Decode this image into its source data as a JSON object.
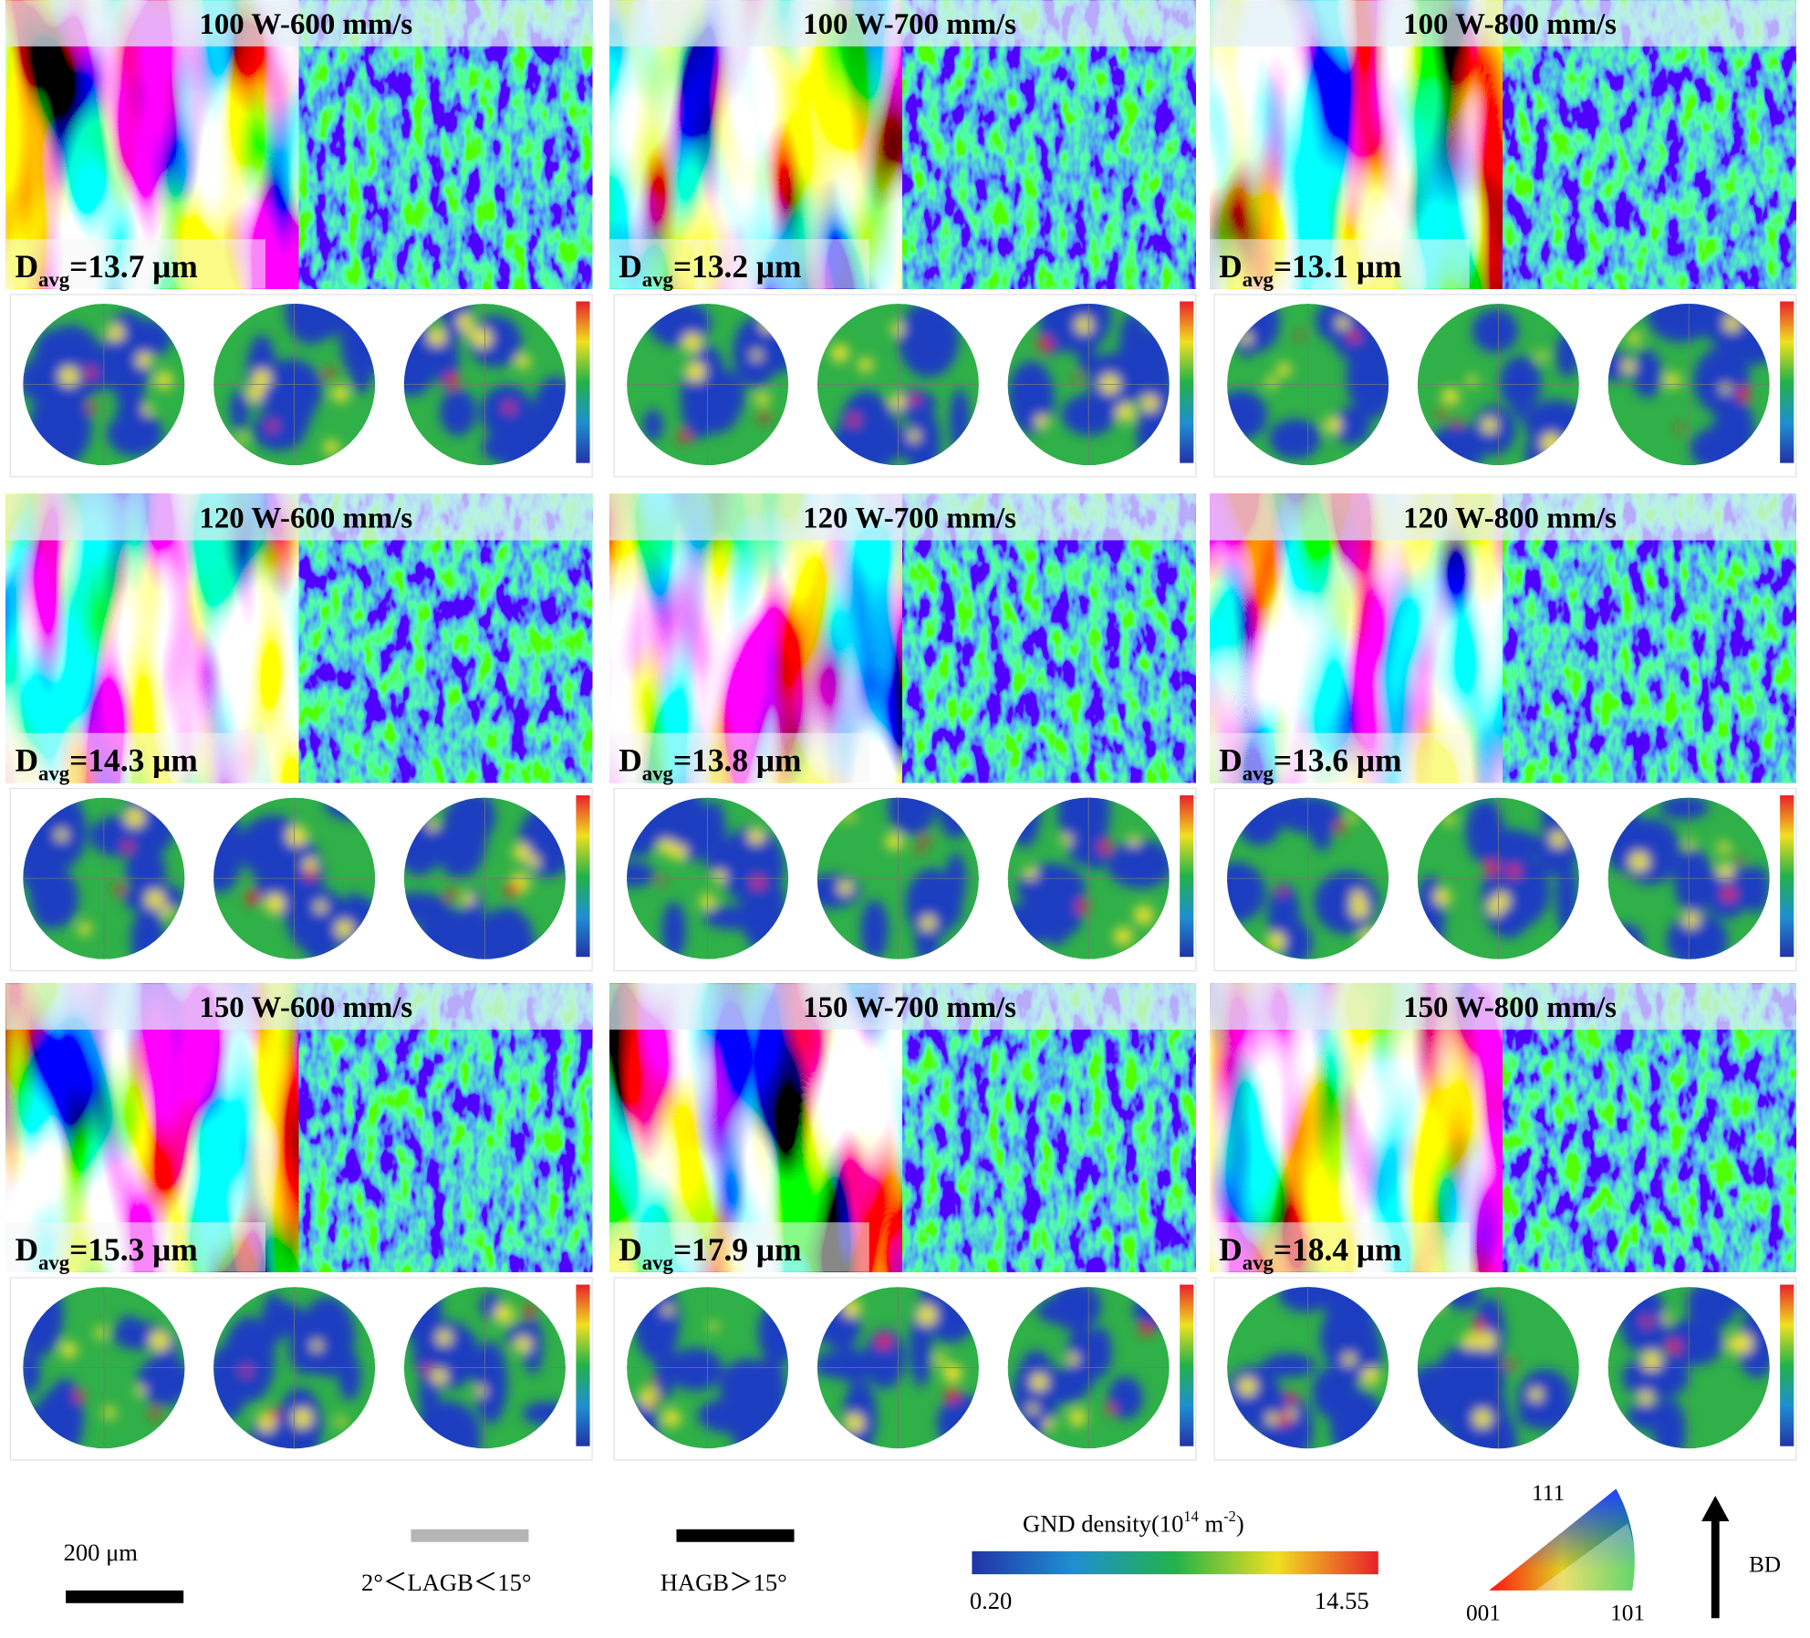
{
  "panels": [
    {
      "title": "100 W-600 mm/s",
      "davg": {
        "symbol": "D",
        "subscript": "avg",
        "value": "=13.7 μm"
      }
    },
    {
      "title": "100 W-700 mm/s",
      "davg": {
        "symbol": "D",
        "subscript": "avg",
        "value": "=13.2 μm"
      }
    },
    {
      "title": "100 W-800 mm/s",
      "davg": {
        "symbol": "D",
        "subscript": "avg",
        "value": "=13.1 μm"
      }
    },
    {
      "title": "120 W-600 mm/s",
      "davg": {
        "symbol": "D",
        "subscript": "avg",
        "value": "=14.3 μm"
      }
    },
    {
      "title": "120 W-700 mm/s",
      "davg": {
        "symbol": "D",
        "subscript": "avg",
        "value": "=13.8 μm"
      }
    },
    {
      "title": "120 W-800 mm/s",
      "davg": {
        "symbol": "D",
        "subscript": "avg",
        "value": "=13.6 μm"
      }
    },
    {
      "title": "150 W-600 mm/s",
      "davg": {
        "symbol": "D",
        "subscript": "avg",
        "value": "=15.3 μm"
      }
    },
    {
      "title": "150 W-700 mm/s",
      "davg": {
        "symbol": "D",
        "subscript": "avg",
        "value": "=17.9 μm"
      }
    },
    {
      "title": "150 W-800 mm/s",
      "davg": {
        "symbol": "D",
        "subscript": "avg",
        "value": "=18.4 μm"
      }
    }
  ],
  "legend": {
    "scale_bar": "200 μm",
    "lagb": "2°＜LAGB＜15°",
    "hagb": "HAGB＞15°",
    "gnd_title": {
      "text": "GND density(10",
      "exponent": "14",
      "unit": " m",
      "unit_exponent": "-2",
      "close": ")"
    },
    "gnd_min": "0.20",
    "gnd_max": "14.55",
    "ipf": {
      "top": "111",
      "left": "001",
      "right": "101"
    },
    "build_direction": "BD"
  }
}
